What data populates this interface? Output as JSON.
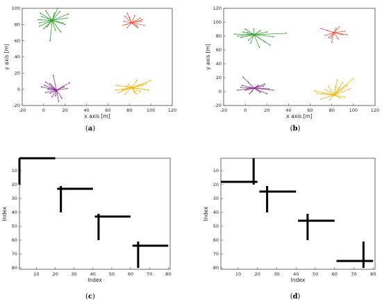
{
  "chart_data": [
    {
      "panel": "a",
      "caption_letter": "a",
      "type": "scatter",
      "xlabel": "x axis [m]",
      "ylabel": "y axis [m]",
      "xlim": [
        -20,
        120
      ],
      "ylim": [
        -20,
        100
      ],
      "xticks": [
        -20,
        0,
        20,
        40,
        60,
        80,
        100,
        120
      ],
      "yticks": [
        -20,
        0,
        20,
        40,
        60,
        80,
        100
      ],
      "grid": false,
      "series": [
        {
          "color": "#2ca02c",
          "center": [
            8,
            85
          ],
          "rays": [
            [
              -8,
              -10
            ],
            [
              5,
              15
            ],
            [
              15,
              8
            ],
            [
              12,
              -5
            ],
            [
              -10,
              5
            ],
            [
              -12,
              -3
            ],
            [
              3,
              -12
            ],
            [
              -2,
              -25
            ],
            [
              10,
              -3
            ],
            [
              -6,
              12
            ],
            [
              8,
              -14
            ],
            [
              -12,
              -7
            ],
            [
              14,
              3
            ],
            [
              2,
              9
            ],
            [
              -5,
              -8
            ],
            [
              -11,
              9
            ],
            [
              7,
              11
            ],
            [
              -13,
              1
            ]
          ]
        },
        {
          "color": "#e8553f",
          "center": [
            82,
            82
          ],
          "rays": [
            [
              -6,
              8
            ],
            [
              -4,
              12
            ],
            [
              10,
              4
            ],
            [
              12,
              -3
            ],
            [
              6,
              -6
            ],
            [
              -8,
              -3
            ],
            [
              -4,
              -6
            ],
            [
              3,
              9
            ],
            [
              9,
              2
            ],
            [
              -7,
              2
            ],
            [
              5,
              -4
            ],
            [
              -2,
              7
            ],
            [
              8,
              6
            ],
            [
              -5,
              -2
            ]
          ]
        },
        {
          "color": "#8e2c8e",
          "center": [
            12,
            -1
          ],
          "rays": [
            [
              -10,
              10
            ],
            [
              -6,
              8
            ],
            [
              -3,
              18
            ],
            [
              -5,
              3
            ],
            [
              -14,
              4
            ],
            [
              -10,
              -3
            ],
            [
              12,
              9
            ],
            [
              10,
              2
            ],
            [
              5,
              -10
            ],
            [
              -1,
              -7
            ],
            [
              -4,
              -8
            ],
            [
              2,
              -14
            ],
            [
              -8,
              1
            ],
            [
              7,
              4
            ],
            [
              -6,
              -4
            ],
            [
              -11,
              6
            ]
          ]
        },
        {
          "color": "#f4b400",
          "center": [
            82,
            2
          ],
          "rays": [
            [
              -12,
              -6
            ],
            [
              -15,
              -3
            ],
            [
              18,
              9
            ],
            [
              10,
              3
            ],
            [
              5,
              9
            ],
            [
              14,
              5
            ],
            [
              -6,
              -8
            ],
            [
              -9,
              -3
            ],
            [
              5,
              -8
            ],
            [
              8,
              -5
            ],
            [
              -3,
              4
            ],
            [
              12,
              -2
            ],
            [
              -14,
              3
            ],
            [
              3,
              -6
            ],
            [
              -5,
              2
            ],
            [
              16,
              -3
            ]
          ]
        }
      ]
    },
    {
      "panel": "b",
      "caption_letter": "b",
      "type": "scatter",
      "xlabel": "x axis [m]",
      "ylabel": "y axis [m]",
      "xlim": [
        -20,
        120
      ],
      "ylim": [
        -20,
        120
      ],
      "xticks": [
        -20,
        0,
        20,
        40,
        60,
        80,
        100,
        120
      ],
      "yticks": [
        -20,
        0,
        20,
        40,
        60,
        80,
        100,
        120
      ],
      "grid": false,
      "series": [
        {
          "color": "#2ca02c",
          "center": [
            8,
            82
          ],
          "rays": [
            [
              -18,
              1
            ],
            [
              -15,
              -2
            ],
            [
              10,
              -10
            ],
            [
              15,
              -15
            ],
            [
              -8,
              8
            ],
            [
              -5,
              -8
            ],
            [
              0,
              8
            ],
            [
              5,
              -18
            ],
            [
              30,
              2
            ],
            [
              -10,
              4
            ],
            [
              -12,
              -4
            ],
            [
              6,
              6
            ],
            [
              18,
              -3
            ],
            [
              -3,
              -12
            ],
            [
              12,
              4
            ],
            [
              -6,
              3
            ]
          ]
        },
        {
          "color": "#e8553f",
          "center": [
            82,
            85
          ],
          "rays": [
            [
              -12,
              6
            ],
            [
              -8,
              -4
            ],
            [
              -5,
              -7
            ],
            [
              5,
              8
            ],
            [
              10,
              2
            ],
            [
              12,
              -3
            ],
            [
              -2,
              -14
            ],
            [
              4,
              -9
            ],
            [
              8,
              -3
            ],
            [
              -6,
              3
            ],
            [
              2,
              6
            ],
            [
              -3,
              -8
            ]
          ]
        },
        {
          "color": "#8e2c8e",
          "center": [
            8,
            5
          ],
          "rays": [
            [
              -10,
              16
            ],
            [
              -5,
              8
            ],
            [
              -12,
              1
            ],
            [
              -15,
              -3
            ],
            [
              12,
              -8
            ],
            [
              18,
              -3
            ],
            [
              10,
              6
            ],
            [
              -8,
              -3
            ],
            [
              -4,
              -8
            ],
            [
              6,
              -6
            ],
            [
              -6,
              -1
            ],
            [
              4,
              4
            ],
            [
              -11,
              4
            ],
            [
              14,
              -1
            ],
            [
              -2,
              -5
            ],
            [
              9,
              3
            ]
          ]
        },
        {
          "color": "#f4b400",
          "center": [
            82,
            -5
          ],
          "rays": [
            [
              -18,
              6
            ],
            [
              -16,
              2
            ],
            [
              -12,
              -6
            ],
            [
              8,
              18
            ],
            [
              12,
              14
            ],
            [
              18,
              24
            ],
            [
              5,
              10
            ],
            [
              -5,
              12
            ],
            [
              3,
              22
            ],
            [
              -8,
              8
            ],
            [
              10,
              -3
            ],
            [
              -4,
              -7
            ],
            [
              15,
              9
            ],
            [
              -10,
              3
            ],
            [
              6,
              -4
            ],
            [
              2,
              12
            ]
          ]
        }
      ]
    },
    {
      "panel": "c",
      "caption_letter": "c",
      "type": "heatmap",
      "xlabel": "Index",
      "ylabel": "Index",
      "xlim": [
        1,
        81
      ],
      "ylim": [
        1,
        81
      ],
      "xticks": [
        10,
        20,
        30,
        40,
        50,
        60,
        70,
        80
      ],
      "yticks": [
        10,
        20,
        30,
        40,
        50,
        60,
        70,
        80
      ],
      "crosses": [
        {
          "row": 1,
          "col": 1,
          "row_span": [
            1,
            20
          ],
          "col_span": [
            1,
            20
          ]
        },
        {
          "row": 23,
          "col": 23,
          "row_span": [
            21,
            40
          ],
          "col_span": [
            21,
            40
          ]
        },
        {
          "row": 43,
          "col": 43,
          "row_span": [
            41,
            60
          ],
          "col_span": [
            41,
            60
          ]
        },
        {
          "row": 64,
          "col": 64,
          "row_span": [
            61,
            80
          ],
          "col_span": [
            61,
            80
          ]
        }
      ]
    },
    {
      "panel": "d",
      "caption_letter": "d",
      "type": "heatmap",
      "xlabel": "Index",
      "ylabel": "Index",
      "xlim": [
        1,
        81
      ],
      "ylim": [
        1,
        81
      ],
      "xticks": [
        10,
        20,
        30,
        40,
        50,
        60,
        70,
        80
      ],
      "yticks": [
        10,
        20,
        30,
        40,
        50,
        60,
        70,
        80
      ],
      "crosses": [
        {
          "row": 18,
          "col": 18,
          "row_span": [
            1,
            20
          ],
          "col_span": [
            1,
            20
          ]
        },
        {
          "row": 25,
          "col": 25,
          "row_span": [
            21,
            40
          ],
          "col_span": [
            21,
            40
          ]
        },
        {
          "row": 46,
          "col": 46,
          "row_span": [
            41,
            60
          ],
          "col_span": [
            41,
            60
          ]
        },
        {
          "row": 75,
          "col": 75,
          "row_span": [
            61,
            80
          ],
          "col_span": [
            61,
            80
          ]
        }
      ]
    }
  ]
}
